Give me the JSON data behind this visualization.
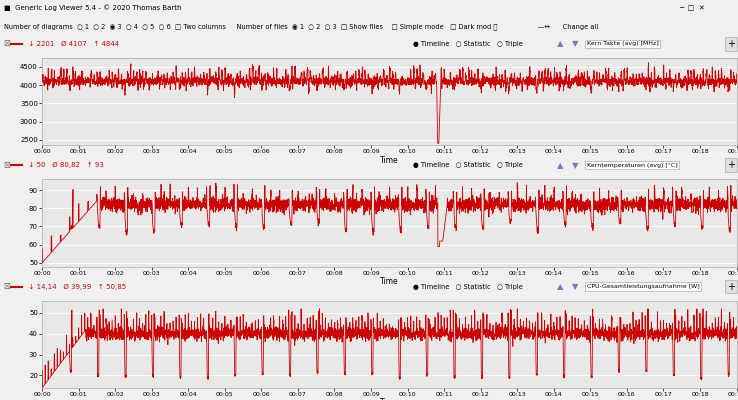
{
  "title_bar": "Generic Log Viewer 5.4 - © 2020 Thomas Barth",
  "panel1": {
    "label": "Kern Takte (avg) [MHz]",
    "stats_min": "↓ 2201",
    "stats_avg": "Ø 4107",
    "stats_max": "↑ 4844",
    "ylabel_ticks": [
      2500,
      3000,
      3500,
      4000,
      4500
    ],
    "ylim": [
      2350,
      4750
    ],
    "color": "#cc0000"
  },
  "panel2": {
    "label": "Kerntemperaturen (avg) [°C]",
    "stats_min": "↓ 50",
    "stats_avg": "Ø 80,82",
    "stats_max": "↑ 93",
    "ylabel_ticks": [
      50,
      60,
      70,
      80,
      90
    ],
    "ylim": [
      48,
      96
    ],
    "color": "#cc0000"
  },
  "panel3": {
    "label": "CPU-Gesamtleistungsaufnahme [W]",
    "stats_min": "↓ 14,14",
    "stats_avg": "Ø 39,99",
    "stats_max": "↑ 50,85",
    "ylabel_ticks": [
      20,
      30,
      40,
      50
    ],
    "ylim": [
      14,
      56
    ],
    "color": "#cc0000"
  },
  "xlabel": "Time",
  "fig_bg": "#f0f0f0",
  "plot_bg": "#e8e8e8",
  "header_bg": "#e0e0e0",
  "grid_color": "#ffffff",
  "line_width": 0.6,
  "seed": 42,
  "n_minutes": 19
}
